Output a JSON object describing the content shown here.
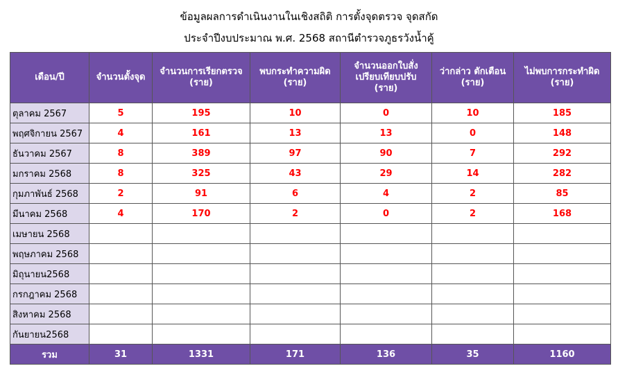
{
  "title": [
    "ข้อมูลผลการดำเนินงานในเชิงสถิติ การตั้งจุดตรวจ จุดสกัด",
    "ประจำปีงบประมาณ พ.ศ. 2568 สถานีตำรวจภูธรวังน้ำคู้"
  ],
  "table": {
    "headers": [
      [
        "เดือน/ปี"
      ],
      [
        "จำนวนตั้งจุด"
      ],
      [
        "จำนวนการเรียกตรวจ",
        "(ราย)"
      ],
      [
        "พบกระทำความผิด",
        "(ราย)"
      ],
      [
        "จำนวนออกใบสั่ง",
        "เปรียบเทียบปรับ",
        "(ราย)"
      ],
      [
        "ว่ากล่าว ตักเตือน",
        "(ราย)"
      ],
      [
        "ไม่พบการกระทำผิด",
        "(ราย)"
      ]
    ],
    "rows": [
      [
        "ตุลาคม 2567",
        5,
        195,
        10,
        0,
        10,
        185
      ],
      [
        "พฤศจิกายน 2567",
        4,
        161,
        13,
        13,
        0,
        148
      ],
      [
        "ธันวาคม 2567",
        8,
        389,
        97,
        90,
        7,
        292
      ],
      [
        "มกราคม 2568",
        8,
        325,
        43,
        29,
        14,
        282
      ],
      [
        "กุมภาพันธ์ 2568",
        2,
        91,
        6,
        4,
        2,
        85
      ],
      [
        "มีนาคม 2568",
        4,
        170,
        2,
        0,
        2,
        168
      ],
      [
        "เมษายน 2568"
      ],
      [
        "พฤษภาคม 2568"
      ],
      [
        "มิถุนายน2568"
      ],
      [
        "กรกฎาคม 2568"
      ],
      [
        "สิงหาคม 2568"
      ],
      [
        "กันยายน2568"
      ]
    ],
    "footer": [
      "รวม",
      31,
      1331,
      171,
      136,
      35,
      1160
    ]
  }
}
